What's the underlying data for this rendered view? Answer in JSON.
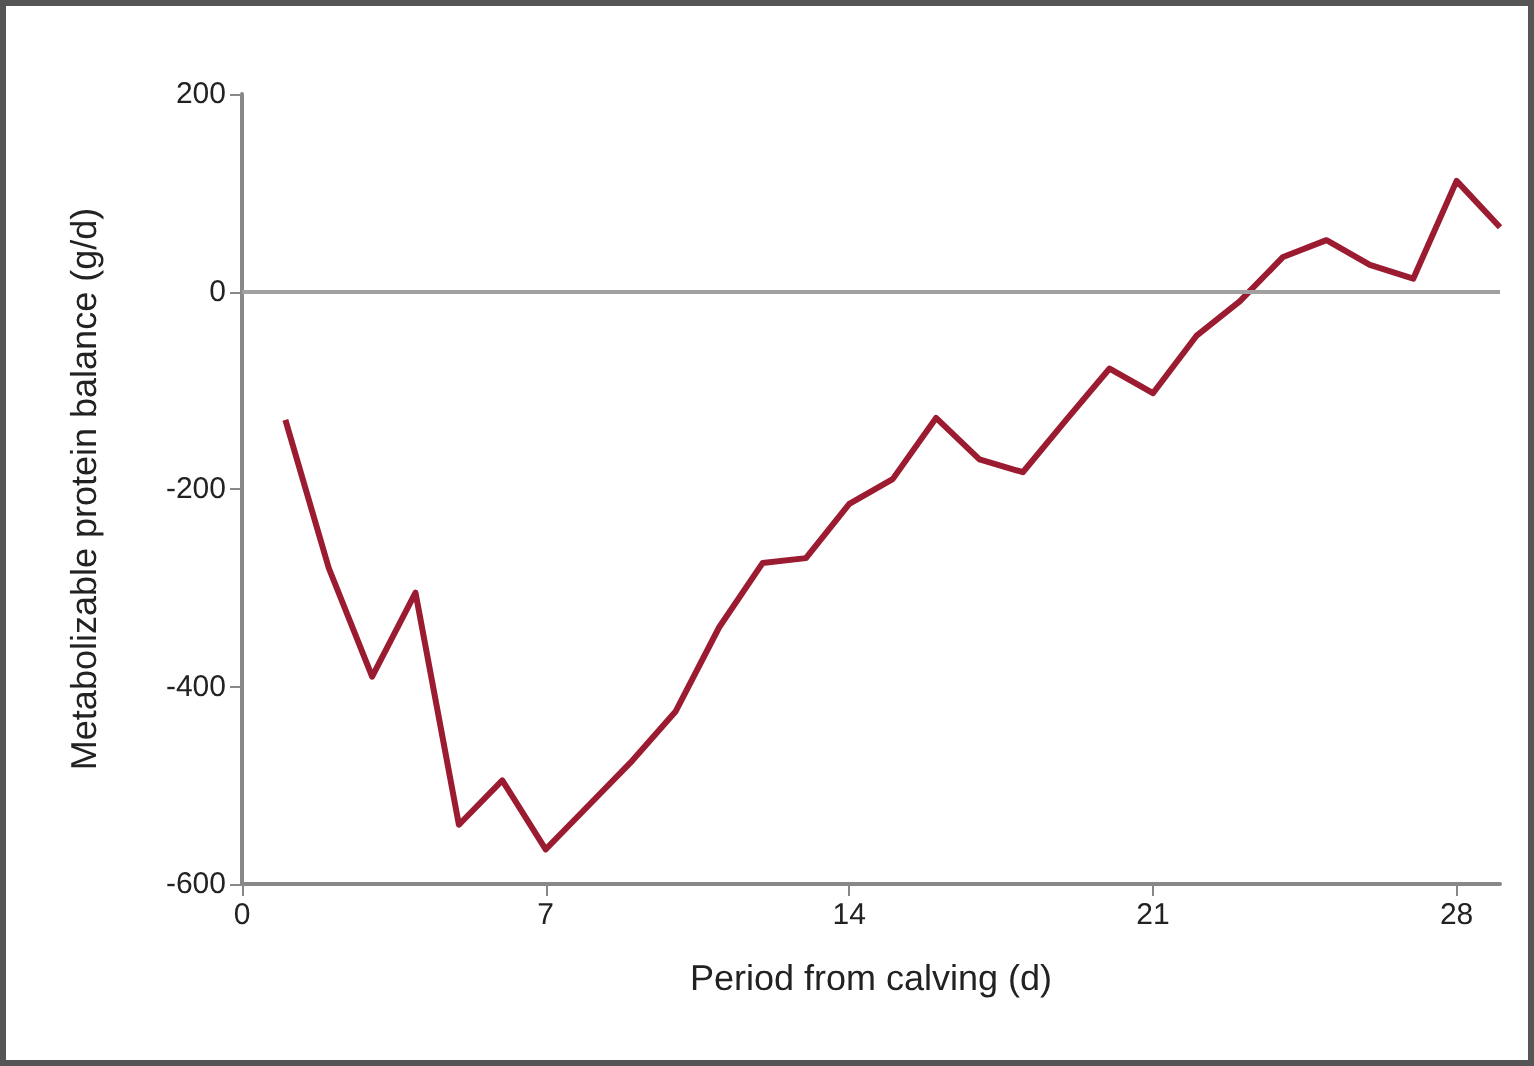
{
  "chart_data": {
    "type": "line",
    "xlabel": "Period from calving (d)",
    "ylabel": "Metabolizable protein balance (g/d)",
    "x": [
      1,
      2,
      3,
      4,
      5,
      6,
      7,
      8,
      9,
      10,
      11,
      12,
      13,
      14,
      15,
      16,
      17,
      18,
      19,
      20,
      21,
      22,
      23,
      24,
      25,
      26,
      27,
      28,
      29
    ],
    "series": [
      {
        "color": "#9b1b30",
        "values": [
          -130,
          -280,
          -390,
          -305,
          -540,
          -495,
          -565,
          -520,
          -475,
          -425,
          -340,
          -275,
          -270,
          -215,
          -190,
          -128,
          -170,
          -183,
          -130,
          -78,
          -103,
          -45,
          -10,
          35,
          52,
          27,
          13,
          112,
          65
        ]
      }
    ],
    "xlim": [
      0,
      29
    ],
    "xticks": [
      0,
      7,
      14,
      21,
      28
    ],
    "ylim": [
      -600,
      200
    ],
    "yticks": [
      -600,
      -400,
      -200,
      0,
      200
    ],
    "ref_lines": [
      {
        "axis": "y",
        "value": 0,
        "color": "#a0a0a0"
      }
    ],
    "grid": false,
    "marker": "none",
    "line_style": "solid"
  }
}
